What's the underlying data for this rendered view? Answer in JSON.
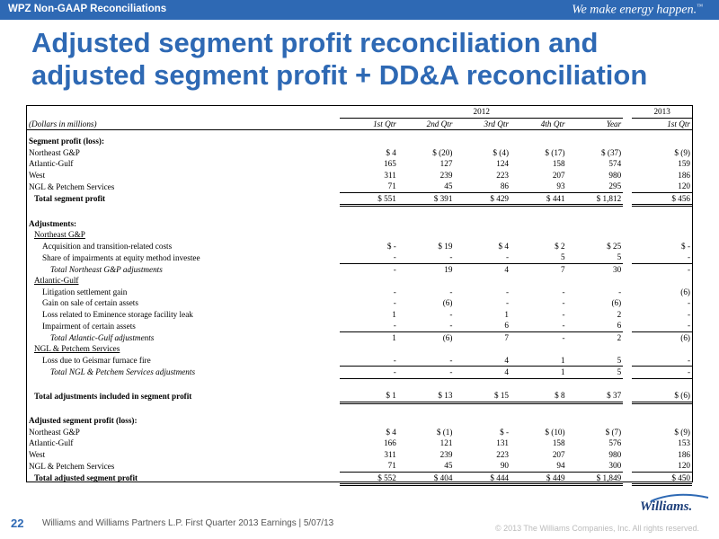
{
  "header": {
    "label": "WPZ Non-GAAP Reconciliations",
    "tagline": "We make energy happen.",
    "tagline_mark": "™"
  },
  "title": "Adjusted segment profit reconciliation and adjusted segment profit + DD&A reconciliation",
  "table": {
    "year_2012": "2012",
    "year_2013": "2013",
    "units_label": "(Dollars in millions)",
    "columns": [
      "1st Qtr",
      "2nd Qtr",
      "3rd Qtr",
      "4th Qtr",
      "Year",
      "1st Qtr"
    ],
    "rows": [
      {
        "label": "Segment profit (loss):",
        "style": "b",
        "values": []
      },
      {
        "label": "Northeast G&P",
        "values": [
          "$ 4",
          "$ (20)",
          "$ (4)",
          "$ (17)",
          "$ (37)",
          "$ (9)"
        ]
      },
      {
        "label": "Atlantic-Gulf",
        "values": [
          "165",
          "127",
          "124",
          "158",
          "574",
          "159"
        ]
      },
      {
        "label": "West",
        "values": [
          "311",
          "239",
          "223",
          "207",
          "980",
          "186"
        ]
      },
      {
        "label": "NGL & Petchem Services",
        "values": [
          "71",
          "45",
          "86",
          "93",
          "295",
          "120"
        ],
        "line": "ul"
      },
      {
        "label": "Total segment profit",
        "style": "b ind1",
        "values": [
          "$ 551",
          "$ 391",
          "$ 429",
          "$ 441",
          "$ 1,812",
          "$ 456"
        ],
        "line": "dbl"
      },
      {
        "label": "",
        "values": []
      },
      {
        "label": "Adjustments:",
        "style": "b",
        "values": []
      },
      {
        "label": "Northeast G&P",
        "style": "u ind1",
        "values": []
      },
      {
        "label": "Acquisition and transition-related costs",
        "style": "ind2",
        "values": [
          "$ -",
          "$ 19",
          "$ 4",
          "$ 2",
          "$ 25",
          "$ -"
        ]
      },
      {
        "label": "Share of impairments at equity method investee",
        "style": "ind2",
        "values": [
          "-",
          "-",
          "-",
          "5",
          "5",
          "-"
        ],
        "line": "ul"
      },
      {
        "label": "Total Northeast G&P adjustments",
        "style": "i ind3",
        "values": [
          "-",
          "19",
          "4",
          "7",
          "30",
          "-"
        ]
      },
      {
        "label": "Atlantic-Gulf",
        "style": "u ind1",
        "values": []
      },
      {
        "label": "Litigation settlement gain",
        "style": "ind2",
        "values": [
          "-",
          "-",
          "-",
          "-",
          "-",
          "(6)"
        ]
      },
      {
        "label": "Gain on sale of certain assets",
        "style": "ind2",
        "values": [
          "-",
          "(6)",
          "-",
          "-",
          "(6)",
          "-"
        ]
      },
      {
        "label": "Loss related to Eminence storage facility leak",
        "style": "ind2",
        "values": [
          "1",
          "-",
          "1",
          "-",
          "2",
          "-"
        ]
      },
      {
        "label": "Impairment of certain assets",
        "style": "ind2",
        "values": [
          "-",
          "-",
          "6",
          "-",
          "6",
          "-"
        ],
        "line": "ul"
      },
      {
        "label": "Total Atlantic-Gulf adjustments",
        "style": "i ind3",
        "values": [
          "1",
          "(6)",
          "7",
          "-",
          "2",
          "(6)"
        ]
      },
      {
        "label": "NGL & Petchem Services",
        "style": "u ind1",
        "values": []
      },
      {
        "label": "Loss due to Geismar furnace fire",
        "style": "ind2",
        "values": [
          "-",
          "-",
          "4",
          "1",
          "5",
          "-"
        ],
        "line": "ul"
      },
      {
        "label": "Total NGL & Petchem Services adjustments",
        "style": "i ind3",
        "values": [
          "-",
          "-",
          "4",
          "1",
          "5",
          "-"
        ],
        "line": "ul"
      },
      {
        "label": "",
        "values": []
      },
      {
        "label": "Total adjustments included in segment profit",
        "style": "b ind1",
        "values": [
          "$ 1",
          "$ 13",
          "$ 15",
          "$ 8",
          "$ 37",
          "$ (6)"
        ],
        "line": "dbl"
      },
      {
        "label": "",
        "values": []
      },
      {
        "label": "Adjusted segment profit (loss):",
        "style": "b",
        "values": []
      },
      {
        "label": "Northeast G&P",
        "values": [
          "$ 4",
          "$ (1)",
          "$ -",
          "$ (10)",
          "$ (7)",
          "$ (9)"
        ]
      },
      {
        "label": "Atlantic-Gulf",
        "values": [
          "166",
          "121",
          "131",
          "158",
          "576",
          "153"
        ]
      },
      {
        "label": "West",
        "values": [
          "311",
          "239",
          "223",
          "207",
          "980",
          "186"
        ]
      },
      {
        "label": "NGL & Petchem Services",
        "values": [
          "71",
          "45",
          "90",
          "94",
          "300",
          "120"
        ],
        "line": "ul"
      },
      {
        "label": "Total adjusted segment profit",
        "style": "b ind1",
        "values": [
          "$ 552",
          "$ 404",
          "$ 444",
          "$ 449",
          "$ 1,849",
          "$ 450"
        ],
        "line": "dbl"
      }
    ]
  },
  "footer": {
    "page_number": "22",
    "text": "Williams and Williams Partners L.P. First Quarter 2013 Earnings  |  5/07/13",
    "copyright": "© 2013 The Williams Companies, Inc. All rights reserved.",
    "logo": "Williams."
  },
  "colors": {
    "brand_blue": "#2e69b4",
    "logo_navy": "#1d3f7a"
  }
}
